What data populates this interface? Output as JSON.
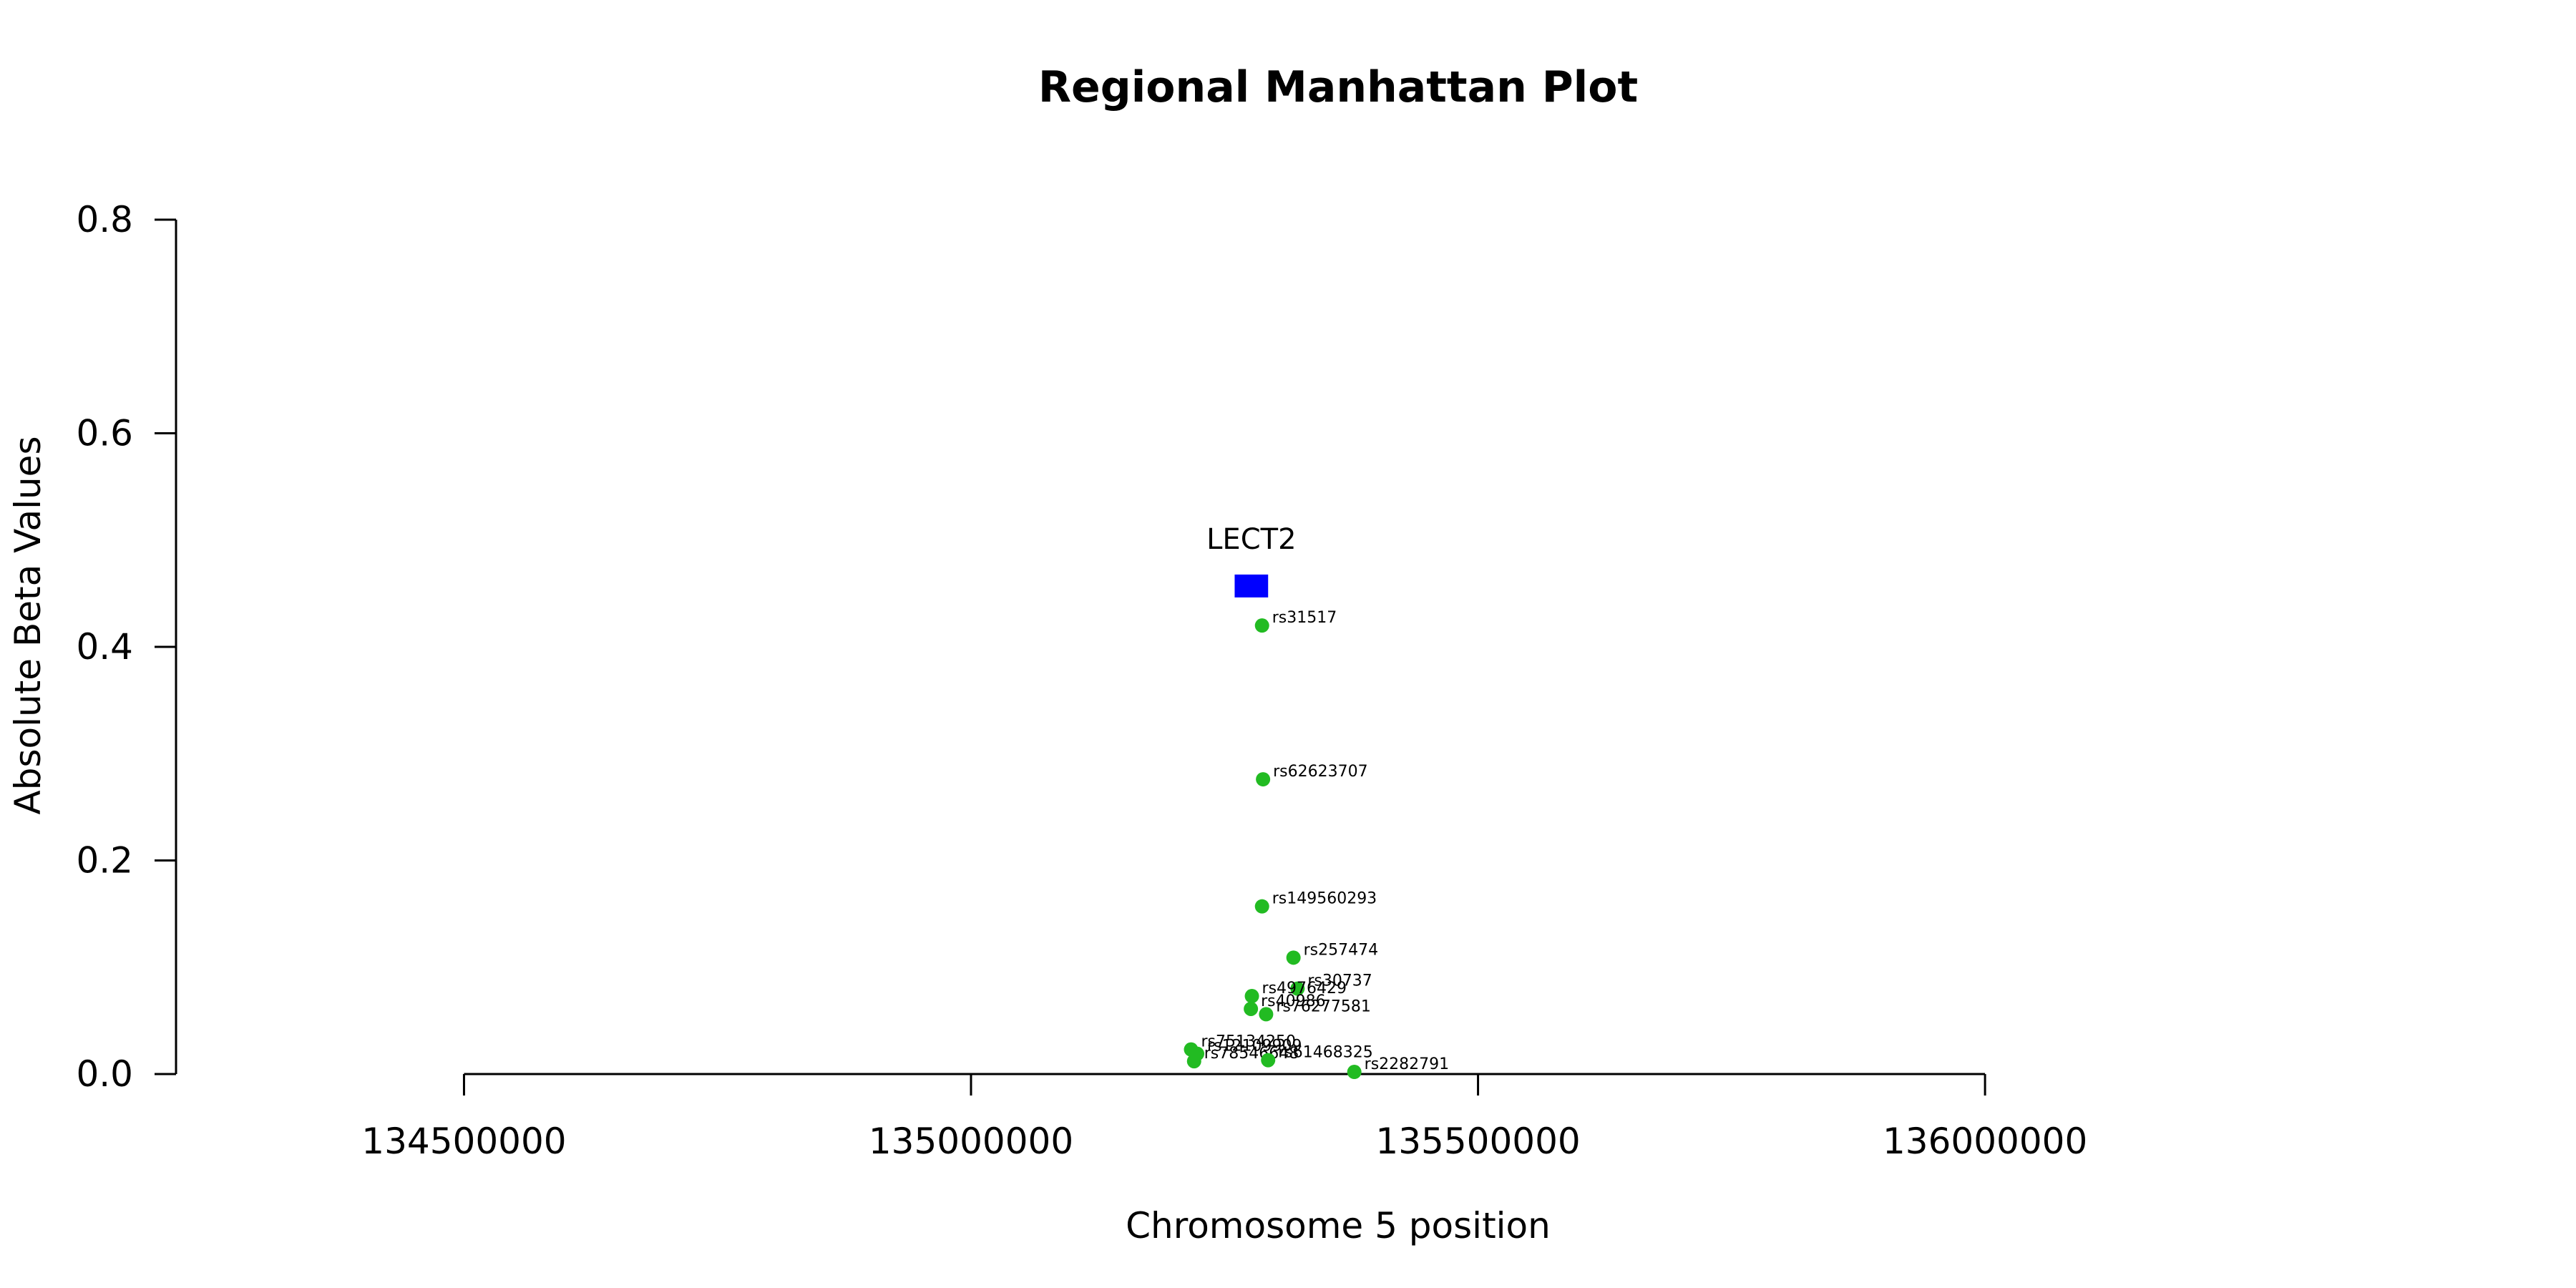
{
  "chart_data": {
    "type": "scatter",
    "title": "Regional Manhattan Plot",
    "xlabel": "Chromosome 5 position",
    "ylabel": "Absolute Beta Values",
    "xlim": [
      134216000,
      136508000
    ],
    "ylim": [
      0,
      0.8
    ],
    "x_ticks": [
      134500000,
      135000000,
      135500000,
      136000000
    ],
    "x_tick_labels": [
      "134500000",
      "135000000",
      "135500000",
      "136000000"
    ],
    "y_ticks": [
      0.0,
      0.2,
      0.4,
      0.6,
      0.8
    ],
    "y_tick_labels": [
      "0.0",
      "0.2",
      "0.4",
      "0.6",
      "0.8"
    ],
    "grid": false,
    "point_color": "#22bb22",
    "gene_color": "#0000ff",
    "genes": [
      {
        "name": "LECT2",
        "start": 135260000,
        "end": 135293000,
        "y": 0.457
      }
    ],
    "points": [
      {
        "label": "rs31517",
        "x": 135287000,
        "y": 0.42
      },
      {
        "label": "rs62623707",
        "x": 135288000,
        "y": 0.276
      },
      {
        "label": "rs149560293",
        "x": 135287000,
        "y": 0.157
      },
      {
        "label": "rs257474",
        "x": 135318000,
        "y": 0.109
      },
      {
        "label": "rs30737",
        "x": 135322000,
        "y": 0.08
      },
      {
        "label": "rs4976429",
        "x": 135277000,
        "y": 0.073
      },
      {
        "label": "rs40986",
        "x": 135276000,
        "y": 0.061
      },
      {
        "label": "rs76277581",
        "x": 135291000,
        "y": 0.056
      },
      {
        "label": "rs75134250",
        "x": 135217000,
        "y": 0.023
      },
      {
        "label": "rs12109909",
        "x": 135223000,
        "y": 0.019
      },
      {
        "label": "rs78546648",
        "x": 135220000,
        "y": 0.012
      },
      {
        "label": "rs61468325",
        "x": 135293000,
        "y": 0.013
      },
      {
        "label": "rs2282791",
        "x": 135378000,
        "y": 0.002
      }
    ]
  }
}
